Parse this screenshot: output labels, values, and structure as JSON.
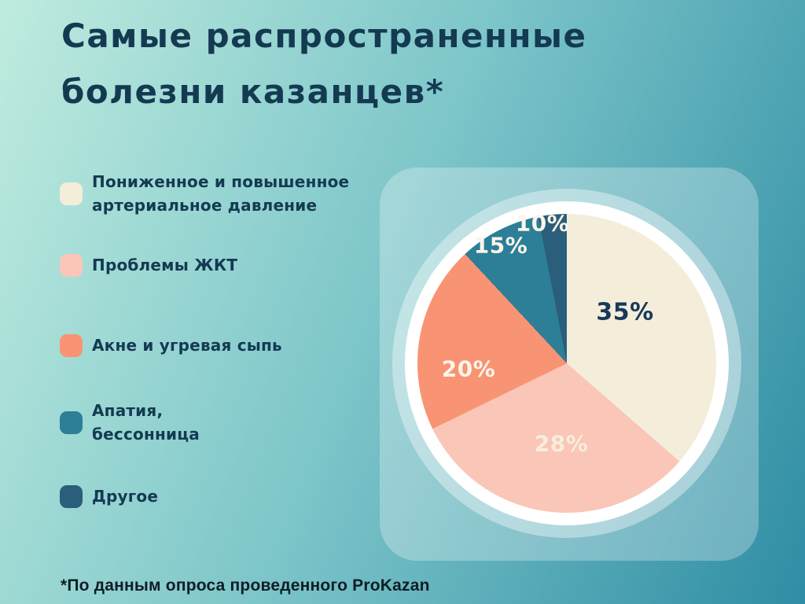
{
  "page": {
    "title_line1": "Самые распространенные",
    "title_line2": "болезни казанцев*",
    "footnote": "*По данным опроса проведенного ProKazan"
  },
  "colors": {
    "background_top_left": "#bfecdf",
    "background_bottom_right": "#2f8da4",
    "panel_overlay": "rgba(255,255,255,0.28)",
    "pie_ring": "#ffffff",
    "title_text": "#143a52",
    "legend_text": "#143a52",
    "footnote_text": "#0f1d26",
    "slice_label_dark": "#16395a",
    "slice_label_light": "#fbf5ea"
  },
  "legend": {
    "items": [
      {
        "label": [
          "Пониженное и повышенное",
          "артериальное давление"
        ],
        "color": "#f4edda"
      },
      {
        "label": "Проблемы ЖКТ",
        "color": "#fac6b8"
      },
      {
        "label": "Акне и угревая сыпь",
        "color": "#f89474"
      },
      {
        "label": [
          "Апатия,",
          "бессонница"
        ],
        "color": "#2d7e97"
      },
      {
        "label": "Другое",
        "color": "#2b5e7a"
      }
    ]
  },
  "chart_data": {
    "type": "pie",
    "title": "Самые распространенные болезни казанцев*",
    "unit": "percent",
    "source_note": "*По данным опроса проведенного ProKazan",
    "legend_position": "left",
    "slices": [
      {
        "label": "Пониженное и повышенное артериальное давление",
        "value": 35,
        "display_label": "35%",
        "color": "#f4edda",
        "drawn_angle_deg": [
          0,
          131
        ]
      },
      {
        "label": "Проблемы ЖКТ",
        "value": 28,
        "display_label": "28%",
        "color": "#fac6b8",
        "drawn_angle_deg": [
          131,
          244
        ]
      },
      {
        "label": "Акне и угревая сыпь",
        "value": 20,
        "display_label": "20%",
        "color": "#f89474",
        "drawn_angle_deg": [
          244,
          317
        ]
      },
      {
        "label": "Апатия, бессонница",
        "value": 15,
        "display_label": "15%",
        "color": "#2d7e97",
        "drawn_angle_deg": [
          317,
          349
        ]
      },
      {
        "label": "Другое",
        "value": 10,
        "display_label": "10%",
        "color": "#2b5e7a",
        "drawn_angle_deg": [
          349,
          360
        ]
      }
    ]
  }
}
